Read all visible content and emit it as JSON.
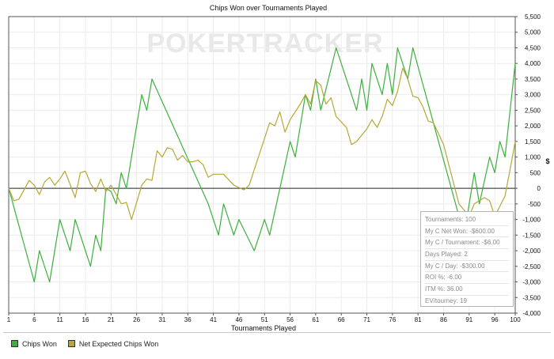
{
  "chart_data": {
    "type": "line",
    "title": "Chips Won over Tournaments Played",
    "xlabel": "Tournaments Played",
    "ylabel": "$",
    "watermark": "POKERTRACKER",
    "xlim": [
      1,
      100
    ],
    "ylim": [
      -4000,
      5500
    ],
    "xticks": [
      "1",
      "6",
      "11",
      "16",
      "21",
      "26",
      "31",
      "36",
      "41",
      "46",
      "51",
      "56",
      "61",
      "66",
      "71",
      "76",
      "81",
      "86",
      "91",
      "96",
      "100"
    ],
    "yticks": [
      "5,500",
      "5,000",
      "4,500",
      "4,000",
      "3,500",
      "3,000",
      "2,500",
      "2,000",
      "1,500",
      "1,000",
      "500",
      "0",
      "-500",
      "-1,000",
      "-1,500",
      "-2,000",
      "-2,500",
      "-3,000",
      "-3,500",
      "-4,000"
    ],
    "ytick_values": [
      5500,
      5000,
      4500,
      4000,
      3500,
      3000,
      2500,
      2000,
      1500,
      1000,
      500,
      0,
      -500,
      -1000,
      -1500,
      -2000,
      -2500,
      -3000,
      -3500,
      -4000
    ],
    "grid": true,
    "legend_position": "bottom-left",
    "series": [
      {
        "name": "Chips Won",
        "color": "#3cb03c",
        "points": [
          [
            1,
            0
          ],
          [
            6,
            -3000
          ],
          [
            7,
            -2000
          ],
          [
            9,
            -3000
          ],
          [
            11,
            -1000
          ],
          [
            13,
            -2000
          ],
          [
            14,
            -1000
          ],
          [
            17,
            -2500
          ],
          [
            18,
            -1500
          ],
          [
            19,
            -2000
          ],
          [
            20,
            0
          ],
          [
            21,
            -100
          ],
          [
            22,
            -500
          ],
          [
            23,
            500
          ],
          [
            24,
            0
          ],
          [
            26,
            2000
          ],
          [
            27,
            3000
          ],
          [
            28,
            2500
          ],
          [
            29,
            3500
          ],
          [
            40,
            -500
          ],
          [
            42,
            -1500
          ],
          [
            43,
            -500
          ],
          [
            45,
            -1500
          ],
          [
            46,
            -1000
          ],
          [
            49,
            -2000
          ],
          [
            51,
            -1000
          ],
          [
            52,
            -1500
          ],
          [
            56,
            1500
          ],
          [
            57,
            1000
          ],
          [
            59,
            3000
          ],
          [
            60,
            2500
          ],
          [
            61,
            3500
          ],
          [
            62,
            2500
          ],
          [
            65,
            4500
          ],
          [
            69,
            2500
          ],
          [
            70,
            3500
          ],
          [
            71,
            2500
          ],
          [
            72,
            4000
          ],
          [
            74,
            3000
          ],
          [
            75,
            4000
          ],
          [
            76,
            3000
          ],
          [
            77,
            4500
          ],
          [
            79,
            3500
          ],
          [
            80,
            4500
          ],
          [
            90,
            -1500
          ],
          [
            92,
            500
          ],
          [
            93,
            -500
          ],
          [
            95,
            1000
          ],
          [
            96,
            500
          ],
          [
            97,
            1500
          ],
          [
            98,
            1000
          ],
          [
            100,
            4000
          ]
        ]
      },
      {
        "name": "Net Expected Chips Won",
        "color": "#b6a834",
        "points": [
          [
            1,
            0
          ],
          [
            2,
            -400
          ],
          [
            3,
            -350
          ],
          [
            5,
            250
          ],
          [
            6,
            100
          ],
          [
            7,
            -200
          ],
          [
            8,
            200
          ],
          [
            9,
            350
          ],
          [
            10,
            100
          ],
          [
            11,
            300
          ],
          [
            12,
            550
          ],
          [
            14,
            -300
          ],
          [
            15,
            500
          ],
          [
            16,
            550
          ],
          [
            17,
            150
          ],
          [
            18,
            -100
          ],
          [
            19,
            300
          ],
          [
            20,
            -100
          ],
          [
            21,
            100
          ],
          [
            22,
            -200
          ],
          [
            23,
            -500
          ],
          [
            24,
            -450
          ],
          [
            25,
            -1000
          ],
          [
            27,
            100
          ],
          [
            28,
            300
          ],
          [
            29,
            250
          ],
          [
            30,
            1200
          ],
          [
            31,
            1000
          ],
          [
            32,
            1300
          ],
          [
            33,
            1250
          ],
          [
            34,
            900
          ],
          [
            35,
            1050
          ],
          [
            36,
            850
          ],
          [
            37,
            850
          ],
          [
            38,
            900
          ],
          [
            39,
            750
          ],
          [
            40,
            350
          ],
          [
            41,
            450
          ],
          [
            43,
            450
          ],
          [
            45,
            100
          ],
          [
            47,
            -50
          ],
          [
            48,
            100
          ],
          [
            50,
            1100
          ],
          [
            52,
            2100
          ],
          [
            53,
            2000
          ],
          [
            54,
            2450
          ],
          [
            55,
            1800
          ],
          [
            56,
            2200
          ],
          [
            58,
            2700
          ],
          [
            59,
            3000
          ],
          [
            60,
            2700
          ],
          [
            61,
            3450
          ],
          [
            62,
            3300
          ],
          [
            63,
            2700
          ],
          [
            64,
            2900
          ],
          [
            65,
            2300
          ],
          [
            67,
            1950
          ],
          [
            68,
            1400
          ],
          [
            69,
            1500
          ],
          [
            71,
            1900
          ],
          [
            72,
            2200
          ],
          [
            73,
            1950
          ],
          [
            74,
            2300
          ],
          [
            75,
            2850
          ],
          [
            76,
            2650
          ],
          [
            77,
            3100
          ],
          [
            78,
            3850
          ],
          [
            79,
            3500
          ],
          [
            80,
            2950
          ],
          [
            81,
            2900
          ],
          [
            82,
            2600
          ],
          [
            83,
            2150
          ],
          [
            84,
            2100
          ],
          [
            86,
            1400
          ],
          [
            89,
            -500
          ],
          [
            91,
            -900
          ],
          [
            92,
            -500
          ],
          [
            94,
            -300
          ],
          [
            95,
            -400
          ],
          [
            96,
            -900
          ],
          [
            98,
            -250
          ],
          [
            99,
            600
          ],
          [
            100,
            1500
          ]
        ]
      }
    ]
  },
  "stats": [
    {
      "label": "Tournaments: 100"
    },
    {
      "label": "My C Net Won: -$600.00"
    },
    {
      "label": "My C / Tournament: -$6.00"
    },
    {
      "label": "Days Played: 2"
    },
    {
      "label": "My C / Day: -$300.00"
    },
    {
      "label": "ROI %: -6.00"
    },
    {
      "label": "ITM %: 36.00"
    },
    {
      "label": "EV/tourney: 19"
    }
  ],
  "legend": [
    {
      "label": "Chips Won",
      "color": "#3cb03c"
    },
    {
      "label": "Net Expected Chips Won",
      "color": "#b6a834"
    }
  ]
}
